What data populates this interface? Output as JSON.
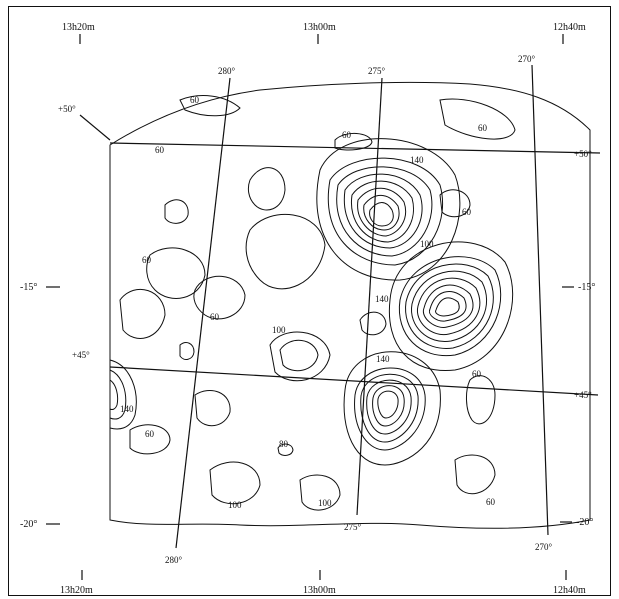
{
  "map": {
    "top_ra_labels": [
      "13h20m",
      "13h00m",
      "12h40m"
    ],
    "bottom_ra_labels": [
      "13h20m",
      "13h00m",
      "12h40m"
    ],
    "left_dec_labels": [
      "-15°",
      "-20°"
    ],
    "right_dec_labels": [
      "-15°",
      "-20°"
    ],
    "longitude_labels_top": [
      "280°",
      "275°",
      "270°"
    ],
    "longitude_labels_bottom": [
      "280°",
      "275°",
      "270°"
    ],
    "latitude_labels_left": [
      "+50°",
      "+45°"
    ],
    "latitude_labels_right": [
      "+50°",
      "+45°"
    ],
    "contour_labels": [
      "60",
      "60",
      "60",
      "60",
      "60",
      "60",
      "60",
      "60",
      "60",
      "60",
      "140",
      "100",
      "140",
      "100",
      "140",
      "140",
      "80",
      "100",
      "100"
    ]
  }
}
